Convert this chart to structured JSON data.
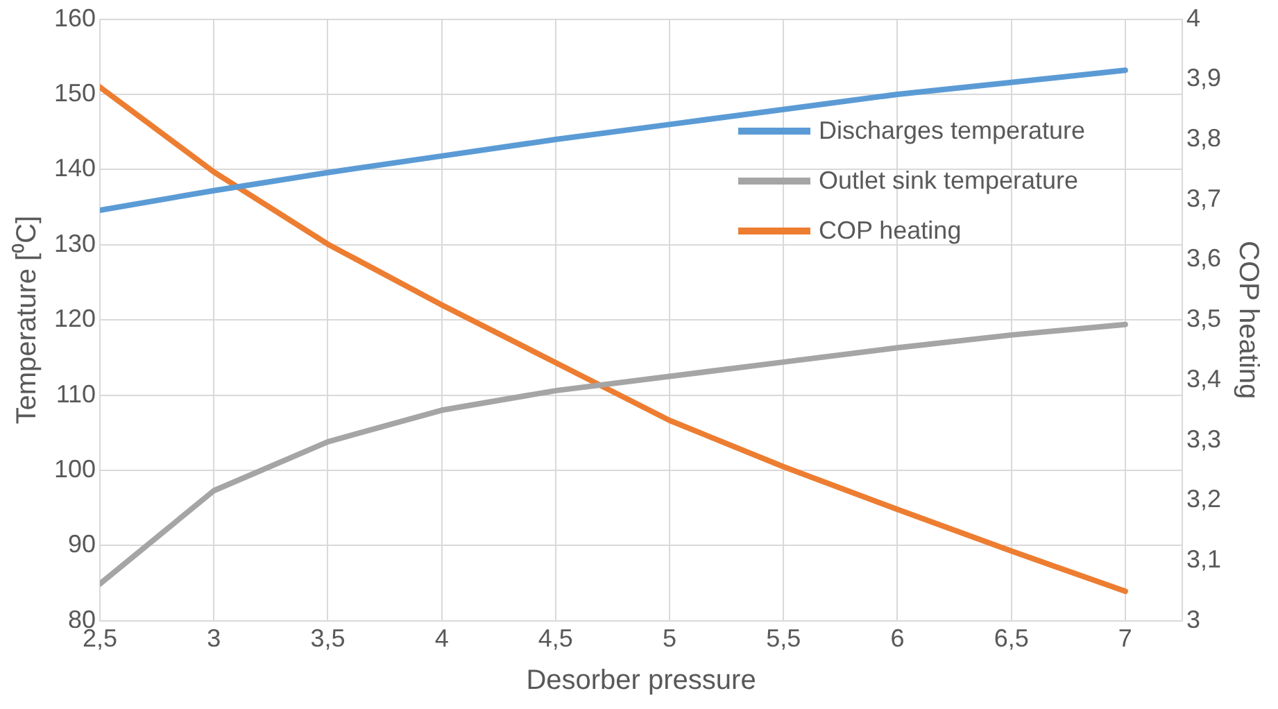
{
  "chart_data": {
    "type": "line",
    "xlabel": "Desorber pressure",
    "ylabel": "Temperature [⁰C]",
    "y2label": "COP heating",
    "x": [
      2.5,
      3,
      3.5,
      4,
      4.5,
      5,
      5.5,
      6,
      6.5,
      7
    ],
    "series": [
      {
        "name": "Discharges temperature",
        "color": "#5b9bd5",
        "values": [
          134.6,
          137.2,
          139.6,
          141.8,
          144,
          146,
          148,
          150,
          151.6,
          153.2
        ]
      },
      {
        "name": "Outlet sink temperature",
        "color": "#a5a5a5",
        "values": [
          84.9,
          97.3,
          103.8,
          108,
          110.6,
          112.5,
          114.4,
          116.3,
          118,
          119.4
        ]
      },
      {
        "name": "COP heating",
        "color": "#ed7d31",
        "axis": "y2",
        "values": [
          3.887,
          3.746,
          3.626,
          3.525,
          3.429,
          3.333,
          3.256,
          3.185,
          3.116,
          3.049
        ]
      }
    ],
    "xlim": [
      2.5,
      7.25
    ],
    "xticks": [
      {
        "value": 2.5,
        "label": "2,5"
      },
      3,
      {
        "value": 3.5,
        "label": "3,5"
      },
      4,
      {
        "value": 4.5,
        "label": "4,5"
      },
      5,
      {
        "value": 5.5,
        "label": "5,5"
      },
      6,
      {
        "value": 6.5,
        "label": "6,5"
      },
      7
    ],
    "ylim": [
      80,
      160
    ],
    "yticks": [
      80,
      90,
      100,
      110,
      120,
      130,
      140,
      150,
      160
    ],
    "y2lim": [
      3,
      4
    ],
    "y2ticks": [
      3,
      {
        "value": 3.1,
        "label": "3,1"
      },
      {
        "value": 3.2,
        "label": "3,2"
      },
      {
        "value": 3.3,
        "label": "3,3"
      },
      {
        "value": 3.4,
        "label": "3,4"
      },
      {
        "value": 3.5,
        "label": "3,5"
      },
      {
        "value": 3.6,
        "label": "3,6"
      },
      {
        "value": 3.7,
        "label": "3,7"
      },
      {
        "value": 3.8,
        "label": "3,8"
      },
      {
        "value": 3.9,
        "label": "3,9"
      },
      4
    ],
    "grid": true,
    "legend": "right",
    "marker": "none",
    "line_style": "solid"
  }
}
